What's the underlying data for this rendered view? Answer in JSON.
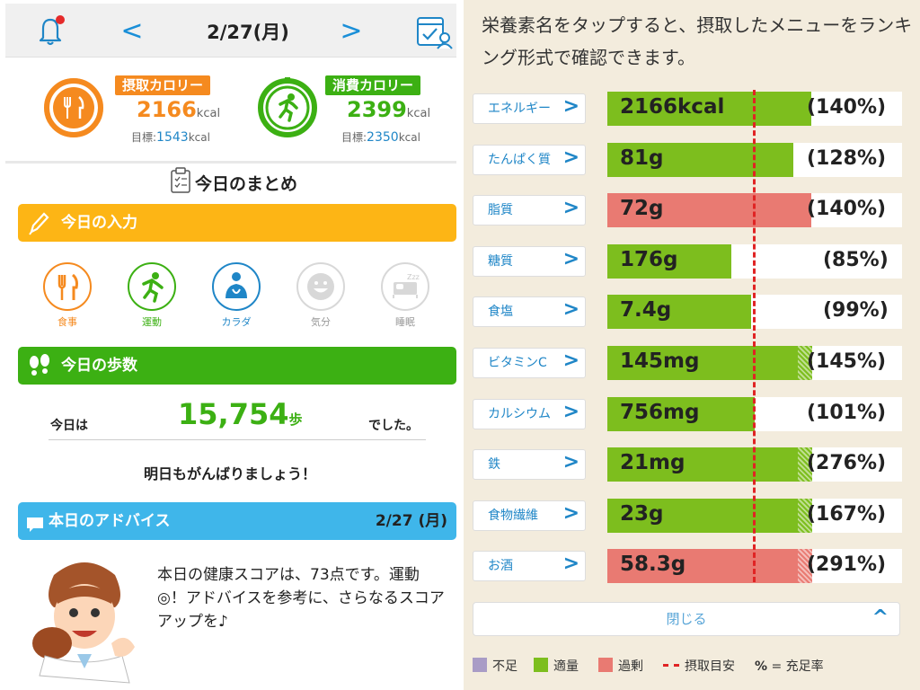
{
  "header": {
    "date": "2/27(月)",
    "prev": "<",
    "next": ">"
  },
  "calories": {
    "intake": {
      "label": "摂取カロリー",
      "value": "2166",
      "unit": "kcal",
      "goal_label": "目標:",
      "goal_value": "1543",
      "goal_unit": "kcal",
      "color": "#f58a1f"
    },
    "burn": {
      "label": "消費カロリー",
      "value": "2399",
      "unit": "kcal",
      "goal_label": "目標:",
      "goal_value": "2350",
      "goal_unit": "kcal",
      "color": "#3cb013"
    }
  },
  "summary": {
    "title": "今日のまとめ"
  },
  "input": {
    "title": "今日の入力",
    "items": [
      {
        "label": "食事",
        "icon": "fork-knife-icon"
      },
      {
        "label": "運動",
        "icon": "runner-icon"
      },
      {
        "label": "カラダ",
        "icon": "body-icon"
      },
      {
        "label": "気分",
        "icon": "smile-icon"
      },
      {
        "label": "睡眠",
        "icon": "sleep-icon"
      }
    ]
  },
  "steps": {
    "title": "今日の歩数",
    "prefix": "今日は",
    "value": "15,754",
    "unit": "歩",
    "suffix": "でした。",
    "cheer": "明日もがんばりましょう！"
  },
  "advice": {
    "title": "本日のアドバイス",
    "date": "2/27 (月)",
    "text": "本日の健康スコアは、73点です。運動◎！アドバイスを参考に、さらなるスコアアップを♪"
  },
  "nutrition": {
    "intro": "栄養素名をタップすると、摂取したメニューをランキング形式で確認できます。",
    "rows": [
      {
        "name": "エネルギー",
        "value": "2166kcal",
        "pct": "(140%)",
        "ratio": 140,
        "status": "adequate"
      },
      {
        "name": "たんぱく質",
        "value": "81g",
        "pct": "(128%)",
        "ratio": 128,
        "status": "adequate"
      },
      {
        "name": "脂質",
        "value": "72g",
        "pct": "(140%)",
        "ratio": 140,
        "status": "excess"
      },
      {
        "name": "糖質",
        "value": "176g",
        "pct": "(85%)",
        "ratio": 85,
        "status": "adequate"
      },
      {
        "name": "食塩",
        "value": "7.4g",
        "pct": "(99%)",
        "ratio": 99,
        "status": "adequate"
      },
      {
        "name": "ビタミンC",
        "value": "145mg",
        "pct": "(145%)",
        "ratio": 145,
        "status": "adequate"
      },
      {
        "name": "カルシウム",
        "value": "756mg",
        "pct": "(101%)",
        "ratio": 101,
        "status": "adequate"
      },
      {
        "name": "鉄",
        "value": "21mg",
        "pct": "(276%)",
        "ratio": 276,
        "status": "adequate"
      },
      {
        "name": "食物繊維",
        "value": "23g",
        "pct": "(167%)",
        "ratio": 167,
        "status": "adequate"
      },
      {
        "name": "お酒",
        "value": "58.3g",
        "pct": "(291%)",
        "ratio": 291,
        "status": "excess"
      }
    ],
    "close": "閉じる",
    "legend": {
      "lack": "不足",
      "adequate": "適量",
      "excess": "過剰",
      "target": "摂取目安",
      "pct_symbol": "%",
      "pct_desc": "= 充足率"
    },
    "colors": {
      "lack": "#a99cc6",
      "adequate": "#7dbe1e",
      "excess": "#e97a72",
      "target": "#e02424"
    }
  }
}
